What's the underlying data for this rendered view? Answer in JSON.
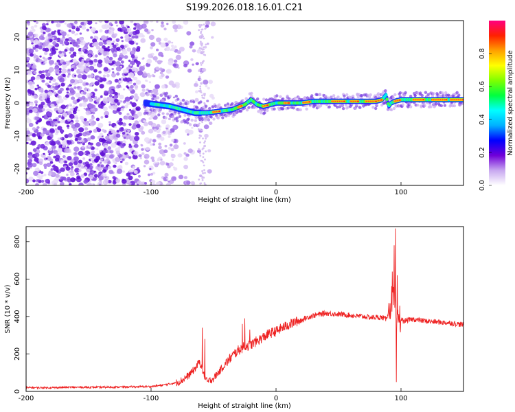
{
  "title": "S199.2026.018.16.01.C21",
  "chart_data": [
    {
      "type": "heatmap",
      "xlabel": "Height of straight line (km)",
      "ylabel": "Frequency (Hz)",
      "xlim": [
        -200,
        150
      ],
      "ylim": [
        -25,
        25
      ],
      "xticks": [
        -200,
        -100,
        0,
        100
      ],
      "yticks": [
        -20,
        -10,
        0,
        10,
        20
      ],
      "colorbar": {
        "label": "Normalized spectral amplitude",
        "range": [
          0,
          1
        ],
        "ticks": [
          "0.0",
          "0.2",
          "0.4",
          "0.6",
          "0.8"
        ],
        "colors": [
          "#ffffff",
          "#c8a8f0",
          "#7000d8",
          "#0000ff",
          "#00b0ff",
          "#00ffff",
          "#00ff40",
          "#80ff00",
          "#ffff00",
          "#ffa000",
          "#ff2000",
          "#ff0080"
        ]
      },
      "ridge": {
        "x": [
          -105,
          -95,
          -85,
          -75,
          -65,
          -55,
          -45,
          -35,
          -25,
          -20,
          -15,
          -10,
          -5,
          0,
          10,
          20,
          30,
          40,
          50,
          60,
          70,
          80,
          85,
          88,
          90,
          92,
          95,
          100,
          110,
          120,
          130,
          140,
          150
        ],
        "y": [
          0,
          -0.5,
          -1,
          -2,
          -3,
          -3,
          -2.5,
          -2,
          -0.5,
          1,
          -0.5,
          -1,
          -0.5,
          0,
          0,
          0,
          0.5,
          0.5,
          0.5,
          0.5,
          0.5,
          0.5,
          1,
          2.5,
          -1,
          0,
          0.5,
          1,
          1,
          1,
          1,
          1,
          1
        ]
      }
    },
    {
      "type": "line",
      "xlabel": "Height of straight line (km)",
      "ylabel": "SNR (10 * v/v)",
      "xlim": [
        -200,
        150
      ],
      "ylim": [
        0,
        880
      ],
      "xticks": [
        -200,
        -100,
        0,
        100
      ],
      "yticks": [
        0,
        200,
        400,
        600,
        800
      ],
      "series": [
        {
          "name": "SNR",
          "color": "#ee2222",
          "x": [
            -200,
            -180,
            -160,
            -140,
            -120,
            -100,
            -90,
            -80,
            -75,
            -70,
            -65,
            -61,
            -58,
            -55,
            -50,
            -45,
            -40,
            -35,
            -30,
            -25,
            -20,
            -15,
            -10,
            -5,
            0,
            5,
            10,
            15,
            20,
            25,
            30,
            35,
            40,
            45,
            50,
            55,
            60,
            65,
            70,
            75,
            80,
            85,
            88,
            91,
            93,
            95,
            96,
            97,
            98,
            99,
            100,
            102,
            105,
            110,
            120,
            130,
            140,
            150
          ],
          "y": [
            20,
            20,
            22,
            22,
            24,
            26,
            34,
            46,
            60,
            85,
            120,
            160,
            90,
            50,
            70,
            110,
            150,
            190,
            220,
            240,
            250,
            270,
            290,
            310,
            320,
            340,
            355,
            370,
            380,
            395,
            405,
            412,
            418,
            415,
            412,
            410,
            406,
            402,
            400,
            395,
            395,
            395,
            385,
            450,
            500,
            480,
            330,
            360,
            400,
            390,
            385,
            375,
            380,
            385,
            375,
            370,
            365,
            355
          ],
          "spikes": [
            {
              "x": -59,
              "y": 340
            },
            {
              "x": -57,
              "y": 280
            },
            {
              "x": -27,
              "y": 360
            },
            {
              "x": -25,
              "y": 390
            },
            {
              "x": -21,
              "y": 330
            },
            {
              "x": 93,
              "y": 640
            },
            {
              "x": 94.5,
              "y": 780
            },
            {
              "x": 95.5,
              "y": 870
            },
            {
              "x": 96.2,
              "y": 50
            },
            {
              "x": 97,
              "y": 620
            }
          ]
        }
      ]
    }
  ]
}
